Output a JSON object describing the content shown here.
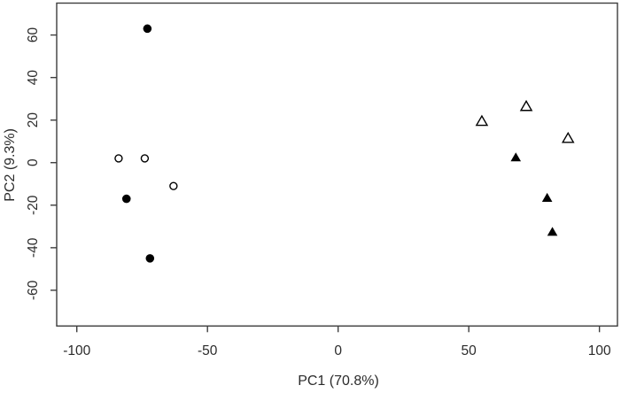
{
  "figure": {
    "background": "#ffffff",
    "axis_color": "#3d3d3d",
    "text_color": "#2b2b2b",
    "marker_color": "#000000"
  },
  "chart_data": {
    "type": "scatter",
    "title": "",
    "xlabel": "PC1 (70.8%)",
    "ylabel": "PC2 (9.3%)",
    "xlim": [
      -107.7,
      106.9
    ],
    "ylim": [
      -76.8,
      75.0
    ],
    "x_ticks": [
      "-100",
      "-50",
      "0",
      "50",
      "100"
    ],
    "x_tick_values": [
      -100,
      -50,
      0,
      50,
      100
    ],
    "y_ticks": [
      "-60",
      "-40",
      "-20",
      "0",
      "20",
      "40",
      "60"
    ],
    "y_tick_values": [
      -60,
      -40,
      -20,
      0,
      20,
      40,
      60
    ],
    "grid": false,
    "legend": "none",
    "frame": "box",
    "series": [
      {
        "name": "filled-circles",
        "marker": "circle-filled",
        "color": "#000000",
        "points": [
          [
            -73,
            63
          ],
          [
            -81,
            -17
          ],
          [
            -72,
            -45
          ]
        ]
      },
      {
        "name": "open-circles",
        "marker": "circle-open",
        "color": "#000000",
        "points": [
          [
            -84,
            2
          ],
          [
            -74,
            2
          ],
          [
            -63,
            -11
          ]
        ]
      },
      {
        "name": "open-triangles",
        "marker": "triangle-open",
        "color": "#000000",
        "points": [
          [
            55,
            19
          ],
          [
            72,
            26
          ],
          [
            88,
            11
          ]
        ]
      },
      {
        "name": "filled-triangles",
        "marker": "triangle-filled",
        "color": "#000000",
        "points": [
          [
            68,
            2
          ],
          [
            80,
            -17
          ],
          [
            82,
            -33
          ]
        ]
      }
    ]
  }
}
